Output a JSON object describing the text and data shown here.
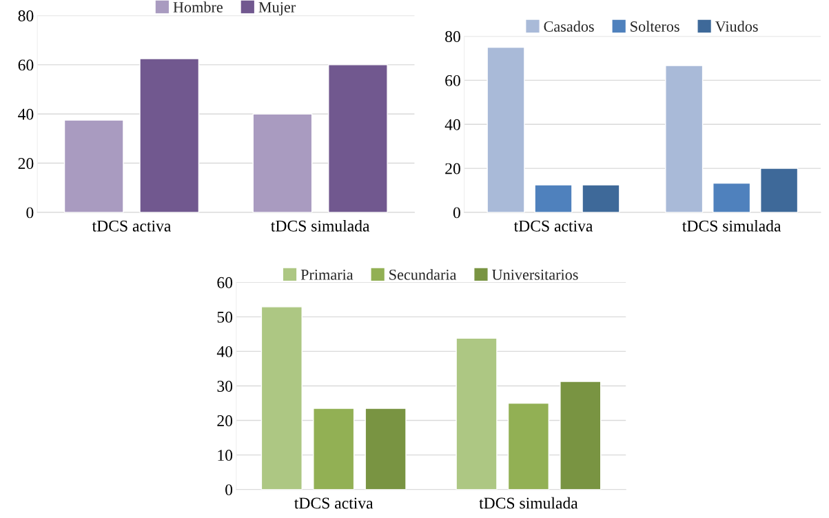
{
  "chart_data": [
    {
      "type": "bar",
      "categories": [
        "tDCS activa",
        "tDCS simulada"
      ],
      "series": [
        {
          "name": "Hombre",
          "color": "#a99bc0",
          "values": [
            37.5,
            40
          ]
        },
        {
          "name": "Mujer",
          "color": "#71588f",
          "values": [
            62.5,
            60
          ]
        }
      ],
      "ylim": [
        0,
        80
      ],
      "yticks": [
        0,
        20,
        40,
        60,
        80
      ],
      "grid": "y",
      "legend": "top"
    },
    {
      "type": "bar",
      "categories": [
        "tDCS activa",
        "tDCS simulada"
      ],
      "series": [
        {
          "name": "Casados",
          "color": "#a9bad8",
          "values": [
            75,
            66.7
          ]
        },
        {
          "name": "Solteros",
          "color": "#4f81bd",
          "values": [
            12.5,
            13.3
          ]
        },
        {
          "name": "Viudos",
          "color": "#3e6999",
          "values": [
            12.5,
            20
          ]
        }
      ],
      "ylim": [
        0,
        80
      ],
      "yticks": [
        0,
        20,
        40,
        60,
        80
      ],
      "grid": "y",
      "legend": "top"
    },
    {
      "type": "bar",
      "categories": [
        "tDCS activa",
        "tDCS simulada"
      ],
      "series": [
        {
          "name": "Primaria",
          "color": "#adc783",
          "values": [
            52.9,
            43.8
          ]
        },
        {
          "name": "Secundaria",
          "color": "#92b054",
          "values": [
            23.5,
            25
          ]
        },
        {
          "name": "Universitarios",
          "color": "#799442",
          "values": [
            23.5,
            31.3
          ]
        }
      ],
      "ylim": [
        0,
        60
      ],
      "yticks": [
        0,
        10,
        20,
        30,
        40,
        50,
        60
      ],
      "grid": "y",
      "legend": "top"
    }
  ]
}
